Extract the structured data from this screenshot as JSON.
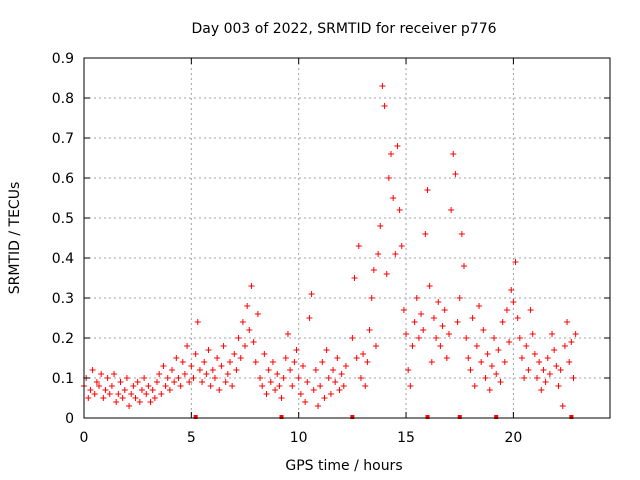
{
  "chart_data": {
    "type": "scatter",
    "title": "Day 003 of 2022, SRMTID for receiver p776",
    "xlabel": "GPS time / hours",
    "ylabel": "SRMTID / TECUs",
    "xlim": [
      0,
      24.5
    ],
    "ylim": [
      0,
      0.9
    ],
    "xticks": [
      0,
      5,
      10,
      15,
      20
    ],
    "yticks": [
      0,
      0.1,
      0.2,
      0.3,
      0.4,
      0.5,
      0.6,
      0.7,
      0.8,
      0.9
    ],
    "xtick_labels": [
      "0",
      "5",
      "10",
      "15",
      "20"
    ],
    "ytick_labels": [
      "0",
      "0.1",
      "0.2",
      "0.3",
      "0.4",
      "0.5",
      "0.6",
      "0.7",
      "0.8",
      "0.9"
    ],
    "grid": true,
    "marker": "+",
    "color": "#ff0000",
    "series": [
      {
        "name": "SRMTID",
        "points": [
          [
            0.0,
            0.08
          ],
          [
            0.1,
            0.1
          ],
          [
            0.2,
            0.05
          ],
          [
            0.3,
            0.07
          ],
          [
            0.4,
            0.12
          ],
          [
            0.5,
            0.06
          ],
          [
            0.6,
            0.09
          ],
          [
            0.7,
            0.08
          ],
          [
            0.8,
            0.11
          ],
          [
            0.9,
            0.05
          ],
          [
            1.0,
            0.07
          ],
          [
            1.1,
            0.1
          ],
          [
            1.2,
            0.06
          ],
          [
            1.3,
            0.08
          ],
          [
            1.4,
            0.11
          ],
          [
            1.5,
            0.04
          ],
          [
            1.6,
            0.06
          ],
          [
            1.7,
            0.09
          ],
          [
            1.8,
            0.05
          ],
          [
            1.9,
            0.07
          ],
          [
            2.0,
            0.1
          ],
          [
            2.1,
            0.03
          ],
          [
            2.2,
            0.06
          ],
          [
            2.3,
            0.08
          ],
          [
            2.4,
            0.05
          ],
          [
            2.5,
            0.09
          ],
          [
            2.6,
            0.04
          ],
          [
            2.7,
            0.07
          ],
          [
            2.8,
            0.1
          ],
          [
            2.9,
            0.06
          ],
          [
            3.0,
            0.08
          ],
          [
            3.1,
            0.04
          ],
          [
            3.2,
            0.07
          ],
          [
            3.3,
            0.05
          ],
          [
            3.4,
            0.09
          ],
          [
            3.5,
            0.11
          ],
          [
            3.6,
            0.06
          ],
          [
            3.7,
            0.13
          ],
          [
            3.8,
            0.08
          ],
          [
            3.9,
            0.1
          ],
          [
            4.0,
            0.07
          ],
          [
            4.1,
            0.12
          ],
          [
            4.2,
            0.09
          ],
          [
            4.3,
            0.15
          ],
          [
            4.4,
            0.1
          ],
          [
            4.5,
            0.08
          ],
          [
            4.6,
            0.14
          ],
          [
            4.7,
            0.11
          ],
          [
            4.8,
            0.18
          ],
          [
            4.9,
            0.09
          ],
          [
            5.0,
            0.13
          ],
          [
            5.1,
            0.1
          ],
          [
            5.2,
            0.16
          ],
          [
            5.3,
            0.24
          ],
          [
            5.4,
            0.12
          ],
          [
            5.5,
            0.09
          ],
          [
            5.6,
            0.14
          ],
          [
            5.7,
            0.11
          ],
          [
            5.8,
            0.17
          ],
          [
            5.9,
            0.08
          ],
          [
            6.0,
            0.12
          ],
          [
            6.1,
            0.1
          ],
          [
            6.2,
            0.15
          ],
          [
            6.3,
            0.07
          ],
          [
            6.4,
            0.13
          ],
          [
            6.5,
            0.18
          ],
          [
            6.6,
            0.09
          ],
          [
            6.7,
            0.11
          ],
          [
            6.8,
            0.14
          ],
          [
            6.9,
            0.08
          ],
          [
            7.0,
            0.16
          ],
          [
            7.1,
            0.12
          ],
          [
            7.2,
            0.2
          ],
          [
            7.3,
            0.15
          ],
          [
            7.4,
            0.24
          ],
          [
            7.5,
            0.18
          ],
          [
            7.6,
            0.28
          ],
          [
            7.7,
            0.22
          ],
          [
            7.8,
            0.33
          ],
          [
            7.9,
            0.19
          ],
          [
            8.0,
            0.14
          ],
          [
            8.1,
            0.26
          ],
          [
            8.2,
            0.1
          ],
          [
            8.3,
            0.08
          ],
          [
            8.4,
            0.16
          ],
          [
            8.5,
            0.06
          ],
          [
            8.6,
            0.12
          ],
          [
            8.7,
            0.09
          ],
          [
            8.8,
            0.14
          ],
          [
            8.9,
            0.07
          ],
          [
            9.0,
            0.11
          ],
          [
            9.1,
            0.08
          ],
          [
            9.2,
            0.05
          ],
          [
            9.3,
            0.1
          ],
          [
            9.4,
            0.15
          ],
          [
            9.5,
            0.21
          ],
          [
            9.6,
            0.12
          ],
          [
            9.7,
            0.08
          ],
          [
            9.8,
            0.14
          ],
          [
            9.9,
            0.17
          ],
          [
            10.0,
            0.1
          ],
          [
            10.1,
            0.06
          ],
          [
            10.2,
            0.13
          ],
          [
            10.3,
            0.04
          ],
          [
            10.4,
            0.09
          ],
          [
            10.5,
            0.25
          ],
          [
            10.6,
            0.31
          ],
          [
            10.7,
            0.07
          ],
          [
            10.8,
            0.12
          ],
          [
            10.9,
            0.03
          ],
          [
            11.0,
            0.08
          ],
          [
            11.1,
            0.14
          ],
          [
            11.2,
            0.05
          ],
          [
            11.3,
            0.17
          ],
          [
            11.4,
            0.1
          ],
          [
            11.5,
            0.06
          ],
          [
            11.6,
            0.12
          ],
          [
            11.7,
            0.09
          ],
          [
            11.8,
            0.15
          ],
          [
            11.9,
            0.07
          ],
          [
            12.0,
            0.11
          ],
          [
            12.1,
            0.08
          ],
          [
            12.2,
            0.13
          ],
          [
            12.5,
            0.2
          ],
          [
            12.6,
            0.35
          ],
          [
            12.7,
            0.15
          ],
          [
            12.8,
            0.43
          ],
          [
            12.9,
            0.1
          ],
          [
            13.0,
            0.16
          ],
          [
            13.1,
            0.08
          ],
          [
            13.2,
            0.14
          ],
          [
            13.3,
            0.22
          ],
          [
            13.4,
            0.3
          ],
          [
            13.5,
            0.37
          ],
          [
            13.6,
            0.18
          ],
          [
            13.7,
            0.41
          ],
          [
            13.8,
            0.48
          ],
          [
            13.9,
            0.83
          ],
          [
            14.0,
            0.78
          ],
          [
            14.1,
            0.36
          ],
          [
            14.2,
            0.6
          ],
          [
            14.3,
            0.66
          ],
          [
            14.4,
            0.55
          ],
          [
            14.5,
            0.41
          ],
          [
            14.6,
            0.68
          ],
          [
            14.7,
            0.52
          ],
          [
            14.8,
            0.43
          ],
          [
            14.9,
            0.27
          ],
          [
            15.0,
            0.21
          ],
          [
            15.1,
            0.12
          ],
          [
            15.2,
            0.08
          ],
          [
            15.3,
            0.18
          ],
          [
            15.4,
            0.24
          ],
          [
            15.5,
            0.3
          ],
          [
            15.6,
            0.2
          ],
          [
            15.7,
            0.26
          ],
          [
            15.8,
            0.22
          ],
          [
            15.9,
            0.46
          ],
          [
            16.0,
            0.57
          ],
          [
            16.1,
            0.33
          ],
          [
            16.2,
            0.14
          ],
          [
            16.3,
            0.25
          ],
          [
            16.4,
            0.2
          ],
          [
            16.5,
            0.29
          ],
          [
            16.6,
            0.18
          ],
          [
            16.7,
            0.23
          ],
          [
            16.8,
            0.27
          ],
          [
            16.9,
            0.15
          ],
          [
            17.0,
            0.21
          ],
          [
            17.1,
            0.52
          ],
          [
            17.2,
            0.66
          ],
          [
            17.3,
            0.61
          ],
          [
            17.4,
            0.24
          ],
          [
            17.5,
            0.3
          ],
          [
            17.6,
            0.46
          ],
          [
            17.7,
            0.38
          ],
          [
            17.8,
            0.2
          ],
          [
            17.9,
            0.15
          ],
          [
            18.0,
            0.12
          ],
          [
            18.1,
            0.25
          ],
          [
            18.2,
            0.08
          ],
          [
            18.3,
            0.18
          ],
          [
            18.4,
            0.28
          ],
          [
            18.5,
            0.14
          ],
          [
            18.6,
            0.22
          ],
          [
            18.7,
            0.1
          ],
          [
            18.8,
            0.16
          ],
          [
            18.9,
            0.07
          ],
          [
            19.0,
            0.13
          ],
          [
            19.1,
            0.2
          ],
          [
            19.2,
            0.11
          ],
          [
            19.3,
            0.17
          ],
          [
            19.4,
            0.09
          ],
          [
            19.5,
            0.24
          ],
          [
            19.6,
            0.14
          ],
          [
            19.7,
            0.27
          ],
          [
            19.8,
            0.19
          ],
          [
            19.9,
            0.32
          ],
          [
            20.0,
            0.29
          ],
          [
            20.1,
            0.39
          ],
          [
            20.2,
            0.25
          ],
          [
            20.3,
            0.2
          ],
          [
            20.4,
            0.15
          ],
          [
            20.5,
            0.1
          ],
          [
            20.6,
            0.18
          ],
          [
            20.7,
            0.12
          ],
          [
            20.8,
            0.27
          ],
          [
            20.9,
            0.21
          ],
          [
            21.0,
            0.16
          ],
          [
            21.1,
            0.1
          ],
          [
            21.2,
            0.14
          ],
          [
            21.3,
            0.07
          ],
          [
            21.4,
            0.12
          ],
          [
            21.5,
            0.09
          ],
          [
            21.6,
            0.15
          ],
          [
            21.7,
            0.11
          ],
          [
            21.8,
            0.21
          ],
          [
            21.9,
            0.17
          ],
          [
            22.0,
            0.13
          ],
          [
            22.1,
            0.08
          ],
          [
            22.2,
            0.12
          ],
          [
            22.3,
            0.03
          ],
          [
            22.4,
            0.18
          ],
          [
            22.5,
            0.24
          ],
          [
            22.6,
            0.14
          ],
          [
            22.7,
            0.19
          ],
          [
            22.8,
            0.1
          ],
          [
            22.9,
            0.21
          ]
        ]
      }
    ],
    "zero_markers_x": [
      5.2,
      9.2,
      12.5,
      16.0,
      17.5,
      19.2,
      22.7
    ]
  }
}
